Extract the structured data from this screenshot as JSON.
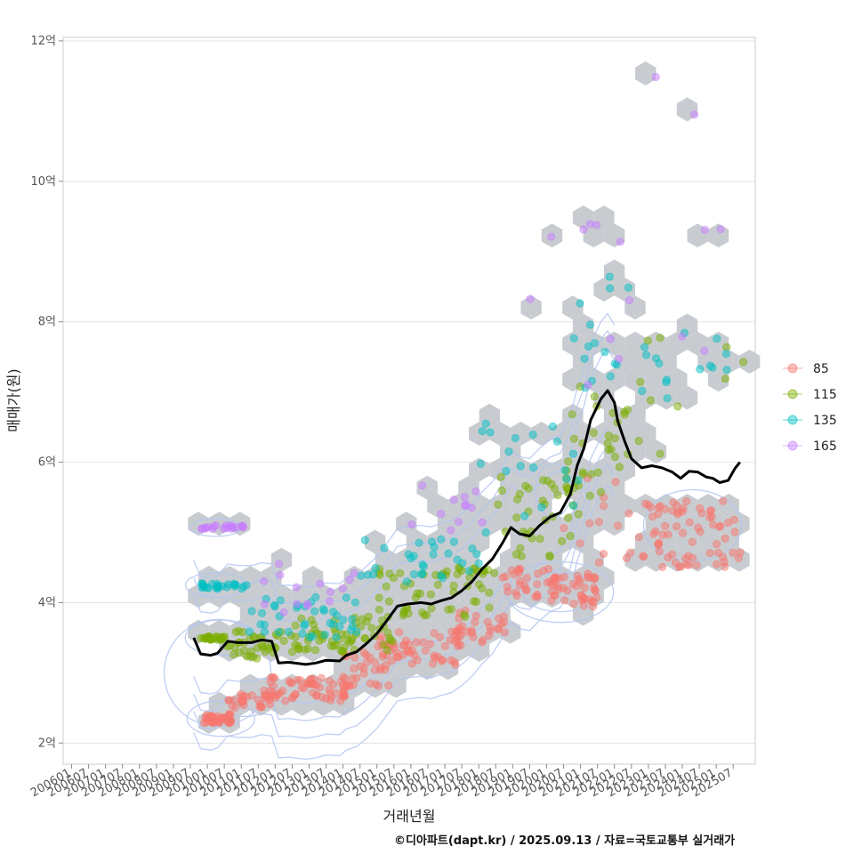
{
  "chart_data": {
    "type": "scatter",
    "title": "",
    "xlabel": "거래년월",
    "ylabel": "매매가(원)",
    "x_ticks": [
      "200601",
      "200607",
      "200701",
      "200707",
      "200801",
      "200807",
      "200901",
      "200907",
      "201001",
      "201007",
      "201101",
      "201107",
      "201201",
      "201207",
      "201301",
      "201307",
      "201401",
      "201407",
      "201501",
      "201507",
      "201601",
      "201607",
      "201701",
      "201707",
      "201801",
      "201807",
      "201901",
      "201907",
      "202001",
      "202007",
      "202101",
      "202107",
      "202201",
      "202207",
      "202301",
      "202307",
      "202401",
      "202407",
      "202501",
      "202507"
    ],
    "xlim": [
      2005.75,
      2026.15
    ],
    "y_ticks": [
      {
        "value": 2,
        "label": "2억"
      },
      {
        "value": 4,
        "label": "4억"
      },
      {
        "value": 6,
        "label": "6억"
      },
      {
        "value": 8,
        "label": "8억"
      },
      {
        "value": 10,
        "label": "10억"
      },
      {
        "value": 12,
        "label": "12억"
      }
    ],
    "ylim": [
      1.7,
      12.05
    ],
    "legend": {
      "position": "right",
      "entries": [
        {
          "name": "85",
          "color": "#f8766d"
        },
        {
          "name": "115",
          "color": "#7cae00"
        },
        {
          "name": "135",
          "color": "#00bfc4"
        },
        {
          "name": "165",
          "color": "#c77cff"
        }
      ]
    },
    "hexbin_color": "#c5c9ce",
    "contour_color": "#b4c6f0",
    "median_line": {
      "name": "median",
      "color": "#000000",
      "x": [
        2009.6,
        2009.8,
        2010.1,
        2010.3,
        2010.6,
        2010.9,
        2011.3,
        2011.6,
        2011.9,
        2012.1,
        2012.4,
        2012.9,
        2013.2,
        2013.5,
        2013.9,
        2014.1,
        2014.4,
        2014.7,
        2015.0,
        2015.3,
        2015.6,
        2015.9,
        2016.3,
        2016.6,
        2016.9,
        2017.2,
        2017.5,
        2017.8,
        2018.1,
        2018.4,
        2018.7,
        2018.95,
        2019.2,
        2019.5,
        2019.8,
        2020.1,
        2020.4,
        2020.7,
        2020.9,
        2021.1,
        2021.3,
        2021.5,
        2021.6,
        2021.8,
        2022.0,
        2022.1,
        2022.3,
        2022.5,
        2022.8,
        2023.1,
        2023.4,
        2023.7,
        2023.95,
        2024.2,
        2024.45,
        2024.7,
        2024.9,
        2025.1,
        2025.35,
        2025.55,
        2025.7
      ],
      "y": [
        3.5,
        3.27,
        3.25,
        3.28,
        3.45,
        3.43,
        3.43,
        3.47,
        3.45,
        3.14,
        3.15,
        3.12,
        3.14,
        3.18,
        3.17,
        3.25,
        3.3,
        3.42,
        3.56,
        3.75,
        3.95,
        3.98,
        4.0,
        3.98,
        4.03,
        4.07,
        4.17,
        4.3,
        4.48,
        4.62,
        4.85,
        5.07,
        4.98,
        4.95,
        5.1,
        5.22,
        5.28,
        5.55,
        5.95,
        6.2,
        6.6,
        6.8,
        6.9,
        7.02,
        6.85,
        6.58,
        6.3,
        6.05,
        5.92,
        5.95,
        5.92,
        5.86,
        5.77,
        5.87,
        5.86,
        5.79,
        5.77,
        5.71,
        5.74,
        5.91,
        6.0
      ]
    },
    "series": [
      {
        "name": "85",
        "clusters": [
          {
            "x": [
              2009.9,
              2010.7
            ],
            "y": [
              2.28,
              2.42
            ],
            "n": 40
          },
          {
            "x": [
              2010.6,
              2012.0
            ],
            "y": [
              2.5,
              2.75
            ],
            "n": 30
          },
          {
            "x": [
              2011.8,
              2014.3
            ],
            "y": [
              2.6,
              2.95
            ],
            "n": 60
          },
          {
            "x": [
              2014.0,
              2015.5
            ],
            "y": [
              2.8,
              3.4
            ],
            "n": 30
          },
          {
            "x": [
              2015.0,
              2017.5
            ],
            "y": [
              3.1,
              3.6
            ],
            "n": 50
          },
          {
            "x": [
              2017.3,
              2018.8
            ],
            "y": [
              3.4,
              3.9
            ],
            "n": 30
          },
          {
            "x": [
              2018.7,
              2020.3
            ],
            "y": [
              4.0,
              4.5
            ],
            "n": 30
          },
          {
            "x": [
              2020.0,
              2021.5
            ],
            "y": [
              3.9,
              4.4
            ],
            "n": 40
          },
          {
            "x": [
              2020.5,
              2022.5
            ],
            "y": [
              4.4,
              5.9
            ],
            "n": 15
          },
          {
            "x": [
              2022.7,
              2025.8
            ],
            "y": [
              4.5,
              5.5
            ],
            "n": 70
          }
        ]
      },
      {
        "name": "115",
        "clusters": [
          {
            "x": [
              2009.8,
              2010.5
            ],
            "y": [
              3.47,
              3.52
            ],
            "n": 25
          },
          {
            "x": [
              2010.5,
              2013.0
            ],
            "y": [
              3.2,
              3.6
            ],
            "n": 45
          },
          {
            "x": [
              2012.5,
              2015.5
            ],
            "y": [
              3.3,
              3.8
            ],
            "n": 55
          },
          {
            "x": [
              2015.0,
              2018.5
            ],
            "y": [
              3.8,
              4.5
            ],
            "n": 60
          },
          {
            "x": [
              2018.5,
              2021.0
            ],
            "y": [
              4.6,
              5.8
            ],
            "n": 40
          },
          {
            "x": [
              2020.5,
              2022.5
            ],
            "y": [
              5.5,
              7.2
            ],
            "n": 30
          },
          {
            "x": [
              2022.5,
              2025.8
            ],
            "y": [
              6.0,
              7.8
            ],
            "n": 10
          }
        ]
      },
      {
        "name": "135",
        "clusters": [
          {
            "x": [
              2009.8,
              2011.2
            ],
            "y": [
              4.2,
              4.28
            ],
            "n": 25
          },
          {
            "x": [
              2011.2,
              2014.5
            ],
            "y": [
              3.5,
              4.1
            ],
            "n": 40
          },
          {
            "x": [
              2014.5,
              2018.0
            ],
            "y": [
              4.3,
              4.9
            ],
            "n": 30
          },
          {
            "x": [
              2018.0,
              2021.0
            ],
            "y": [
              5.0,
              6.6
            ],
            "n": 20
          },
          {
            "x": [
              2020.8,
              2022.5
            ],
            "y": [
              6.8,
              8.7
            ],
            "n": 15
          },
          {
            "x": [
              2022.5,
              2025.5
            ],
            "y": [
              6.8,
              8.0
            ],
            "n": 15
          }
        ]
      },
      {
        "name": "165",
        "clusters": [
          {
            "x": [
              2009.8,
              2011.1
            ],
            "y": [
              5.05,
              5.1
            ],
            "n": 20
          },
          {
            "x": [
              2011.5,
              2014.5
            ],
            "y": [
              3.8,
              4.7
            ],
            "n": 15
          },
          {
            "x": [
              2016.0,
              2019.0
            ],
            "y": [
              4.8,
              5.8
            ],
            "n": 12
          },
          {
            "x": [
              2019.5,
              2022.5
            ],
            "y": [
              7.0,
              9.9
            ],
            "n": 10
          },
          {
            "x": [
              2023.0,
              2025.5
            ],
            "y": [
              7.5,
              11.5
            ],
            "n": 6
          }
        ]
      }
    ]
  },
  "caption": "©디아파트(dapt.kr) / 2025.09.13 / 자료=국토교통부 실거래가"
}
